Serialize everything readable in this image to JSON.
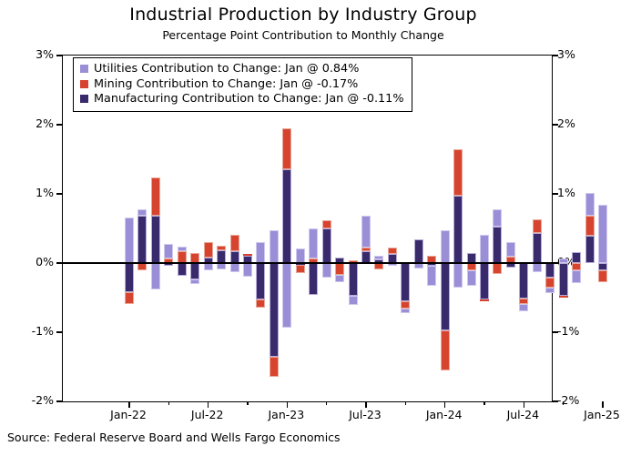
{
  "header": {
    "title": "Industrial Production by Industry Group",
    "subtitle": "Percentage Point Contribution to Monthly Change"
  },
  "footer": {
    "source": "Source: Federal Reserve Board and Wells Fargo Economics"
  },
  "chart_data": {
    "type": "bar",
    "subtype": "stacked-monthly-contributions",
    "title": "Industrial Production by Industry Group",
    "subtitle": "Percentage Point Contribution to Monthly Change",
    "ylim": [
      -2,
      3
    ],
    "grid": false,
    "legend_position": "top-left",
    "y_ticks": [
      {
        "label": "3%",
        "value": 3
      },
      {
        "label": "2%",
        "value": 2
      },
      {
        "label": "1%",
        "value": 1
      },
      {
        "label": "0%",
        "value": 0
      },
      {
        "label": "-1%",
        "value": -1
      },
      {
        "label": "-2%",
        "value": -2
      }
    ],
    "x_major_ticks": [
      {
        "label": "Jan-22",
        "month_index": 0
      },
      {
        "label": "Jul-22",
        "month_index": 6
      },
      {
        "label": "Jan-23",
        "month_index": 12
      },
      {
        "label": "Jul-23",
        "month_index": 18
      },
      {
        "label": "Jan-24",
        "month_index": 24
      },
      {
        "label": "Jul-24",
        "month_index": 30
      },
      {
        "label": "Jan-25",
        "month_index": 36
      }
    ],
    "x_minor_tick_month_indices": [
      3,
      9,
      15,
      21,
      27,
      33
    ],
    "months": [
      "Jan-22",
      "Feb-22",
      "Mar-22",
      "Apr-22",
      "May-22",
      "Jun-22",
      "Jul-22",
      "Aug-22",
      "Sep-22",
      "Oct-22",
      "Nov-22",
      "Dec-22",
      "Jan-23",
      "Feb-23",
      "Mar-23",
      "Apr-23",
      "May-23",
      "Jun-23",
      "Jul-23",
      "Aug-23",
      "Sep-23",
      "Oct-23",
      "Nov-23",
      "Dec-23",
      "Jan-24",
      "Feb-24",
      "Mar-24",
      "Apr-24",
      "May-24",
      "Jun-24",
      "Jul-24",
      "Aug-24",
      "Sep-24",
      "Oct-24",
      "Nov-24",
      "Dec-24",
      "Jan-25"
    ],
    "series": [
      {
        "name": "Utilities",
        "legend": "Utilities Contribution to Change: Jan @ 0.84%",
        "color": "#9a8ed6",
        "border": "#cfc8ee",
        "values": [
          0.66,
          0.09,
          -0.38,
          0.2,
          0.07,
          -0.06,
          -0.1,
          -0.09,
          -0.13,
          -0.2,
          0.3,
          0.47,
          -0.93,
          0.21,
          0.44,
          -0.21,
          -0.1,
          -0.13,
          0.46,
          0.05,
          -0.04,
          -0.06,
          -0.08,
          -0.29,
          0.48,
          -0.35,
          -0.22,
          0.41,
          0.25,
          0.21,
          -0.11,
          -0.13,
          -0.09,
          0.06,
          -0.18,
          0.32,
          0.84
        ]
      },
      {
        "name": "Mining",
        "legend": "Mining Contribution to Change: Jan @ -0.17%",
        "color": "#d6432e",
        "border": "#eba796",
        "values": [
          -0.17,
          -0.11,
          0.55,
          0.07,
          0.17,
          0.15,
          0.22,
          0.06,
          0.24,
          0.03,
          -0.11,
          -0.28,
          0.59,
          -0.11,
          0.06,
          0.12,
          -0.17,
          0.04,
          0.06,
          -0.09,
          0.1,
          -0.11,
          0.0,
          0.1,
          -0.57,
          0.67,
          -0.11,
          -0.02,
          -0.16,
          0.09,
          -0.08,
          0.2,
          -0.14,
          -0.02,
          -0.11,
          0.3,
          -0.17
        ]
      },
      {
        "name": "Manufacturing",
        "legend": "Manufacturing Contribution to Change: Jan @ -0.11%",
        "color": "#382a6b",
        "border": "#b7abd9",
        "values": [
          -0.42,
          0.68,
          0.69,
          -0.04,
          -0.18,
          -0.24,
          0.08,
          0.19,
          0.17,
          0.1,
          -0.53,
          -1.36,
          1.36,
          -0.03,
          -0.46,
          0.5,
          0.08,
          -0.48,
          0.17,
          0.05,
          0.13,
          -0.55,
          0.34,
          -0.04,
          -0.98,
          0.98,
          0.15,
          -0.53,
          0.52,
          -0.07,
          -0.51,
          0.43,
          -0.21,
          -0.48,
          0.16,
          0.39,
          -0.11
        ]
      }
    ],
    "stack_order": [
      "Manufacturing",
      "Mining",
      "Utilities"
    ],
    "source": "Source: Federal Reserve Board and Wells Fargo Economics"
  }
}
